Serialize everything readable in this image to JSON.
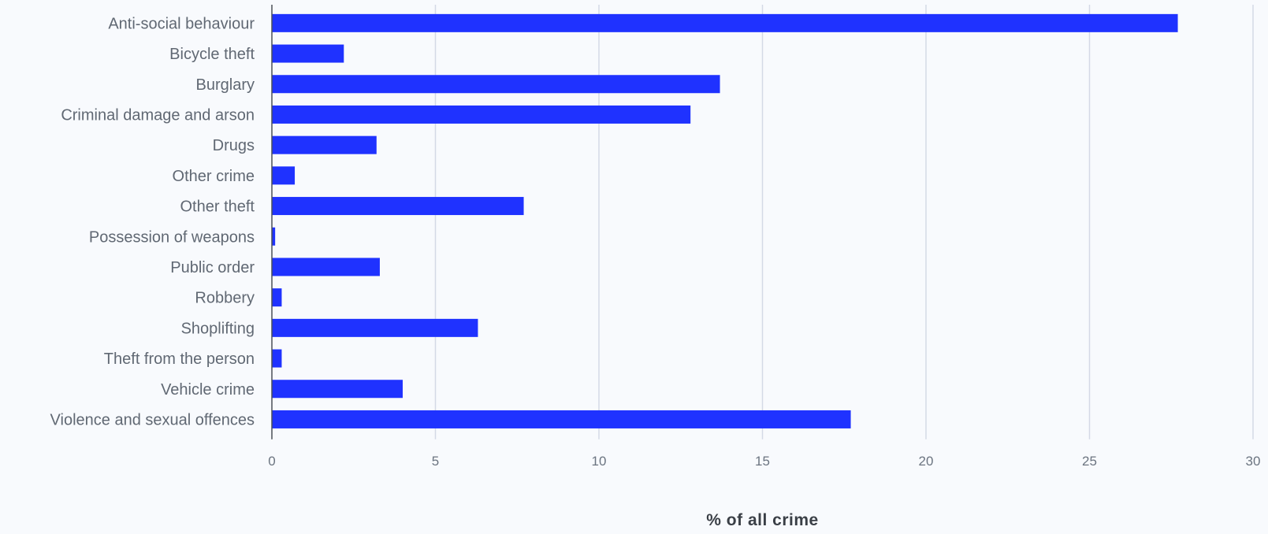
{
  "chart_data": {
    "type": "bar",
    "orientation": "horizontal",
    "categories": [
      "Anti-social behaviour",
      "Bicycle theft",
      "Burglary",
      "Criminal damage and arson",
      "Drugs",
      "Other crime",
      "Other theft",
      "Possession of weapons",
      "Public order",
      "Robbery",
      "Shoplifting",
      "Theft from the person",
      "Vehicle crime",
      "Violence and sexual offences"
    ],
    "values": [
      27.7,
      2.2,
      13.7,
      12.8,
      3.2,
      0.7,
      7.7,
      0.1,
      3.3,
      0.3,
      6.3,
      0.3,
      4.0,
      17.7
    ],
    "xlabel": "% of all crime",
    "ylabel": "",
    "xlim": [
      0,
      30
    ],
    "xticks": [
      0,
      5,
      10,
      15,
      20,
      25,
      30
    ],
    "grid": true,
    "bar_color": "#1f32ff",
    "grid_color": "#d4d9e6",
    "background": "#f8fafd"
  }
}
